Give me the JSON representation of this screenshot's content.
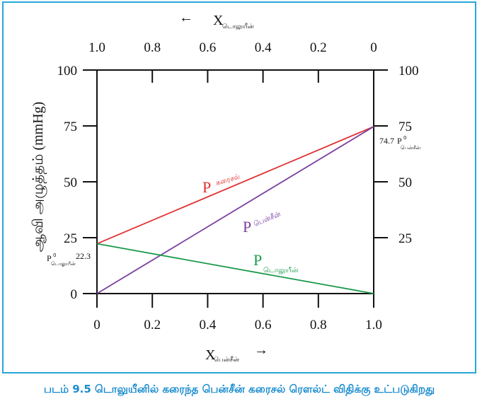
{
  "caption": "படம் 9.5 டொலுயீனில் கரைந்த பென்சீன் கரைசல் ரௌல்ட் விதிக்கு உட்படுகிறது",
  "chart_data": {
    "type": "line",
    "x_bottom": {
      "label_main": "X",
      "label_sub": "பென்சீன்",
      "arrow": "→",
      "ticks": [
        0,
        0.2,
        0.4,
        0.6,
        0.8,
        1.0
      ],
      "tick_labels": [
        "0",
        "0.2",
        "0.4",
        "0.6",
        "0.8",
        "1.0"
      ],
      "range": [
        0,
        1
      ]
    },
    "x_top": {
      "label_main": "X",
      "label_sub": "டொலுயீன்",
      "arrow": "←",
      "ticks": [
        1.0,
        0.8,
        0.6,
        0.4,
        0.2,
        0
      ],
      "tick_labels": [
        "1.0",
        "0.8",
        "0.6",
        "0.4",
        "0.2",
        "0"
      ]
    },
    "y_left": {
      "label": "ஆவி அழுத்தம் (mmHg)",
      "ticks": [
        0,
        25,
        50,
        75,
        100
      ],
      "tick_labels": [
        "0",
        "25",
        "50",
        "75",
        "100"
      ],
      "range": [
        0,
        100
      ]
    },
    "y_right": {
      "ticks": [
        25,
        50,
        75,
        100
      ],
      "tick_labels": [
        "25",
        "50",
        "75",
        "100"
      ]
    },
    "series": [
      {
        "name_letter": "P",
        "name_sub": "கரைசல்",
        "color": "#e03030",
        "x": [
          0,
          1
        ],
        "y": [
          22.3,
          74.7
        ]
      },
      {
        "name_letter": "P",
        "name_sub": "பென்சீன்",
        "color": "#7b3fa0",
        "x": [
          0,
          1
        ],
        "y": [
          0,
          74.7
        ]
      },
      {
        "name_letter": "P",
        "name_sub": "டொலுயீன்",
        "color": "#1a9a4a",
        "x": [
          0,
          1
        ],
        "y": [
          22.3,
          0
        ]
      }
    ],
    "annotations": {
      "right_value": "74.7",
      "right_symbol": "P",
      "right_sup": "0",
      "right_sub": "பென்சீன்",
      "left_value": "22.3",
      "left_symbol": "P",
      "left_sup": "0",
      "left_sub": "டொலுயீன்"
    }
  }
}
